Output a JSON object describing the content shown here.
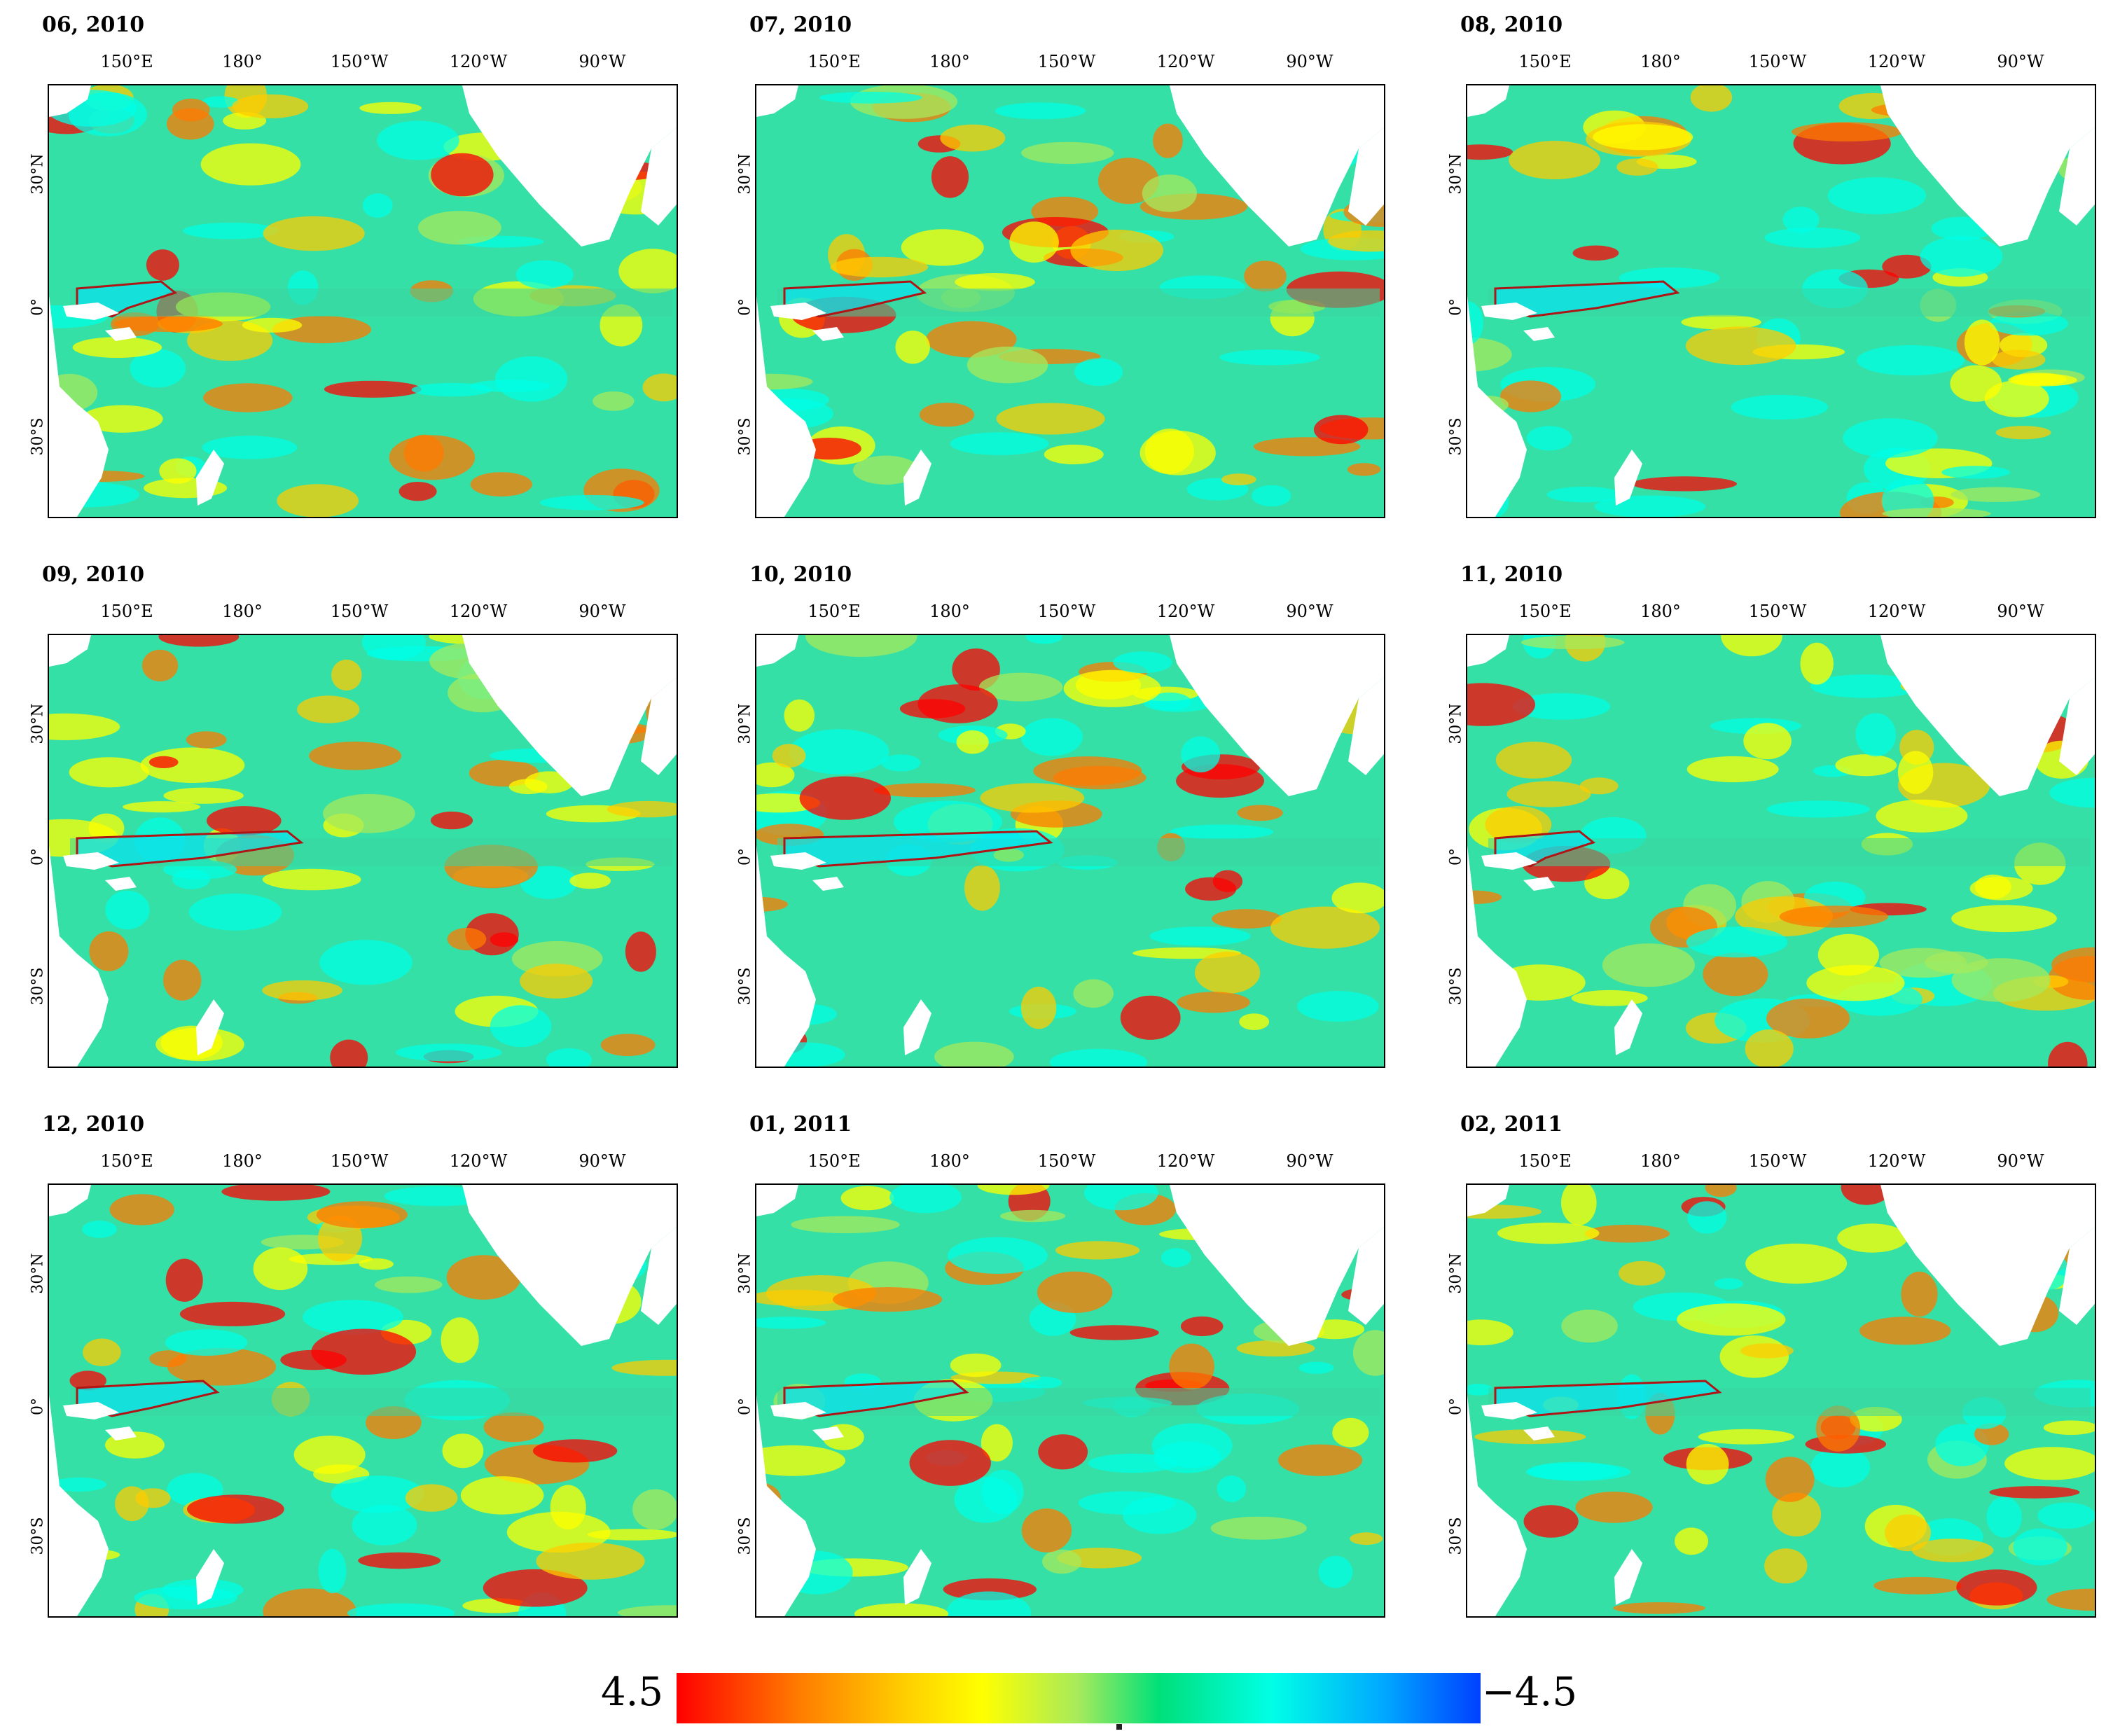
{
  "panels": [
    {
      "title": "06, 2010"
    },
    {
      "title": "07, 2010"
    },
    {
      "title": "08, 2010"
    },
    {
      "title": "09, 2010"
    },
    {
      "title": "10, 2010"
    },
    {
      "title": "11, 2010"
    },
    {
      "title": "12, 2010"
    },
    {
      "title": "01, 2011"
    },
    {
      "title": "02, 2011"
    }
  ],
  "longitude_labels": [
    "150°E",
    "180°",
    "150°W",
    "120°W",
    "90°W"
  ],
  "latitude_labels": [
    "30°N",
    "0°",
    "30°S"
  ],
  "colorbar": {
    "left_label": "4.5",
    "right_label": "−4.5",
    "colors": [
      "#ff0000",
      "#ff7a00",
      "#ffcc00",
      "#ffff00",
      "#a6ea5c",
      "#00e07a",
      "#00ffe6",
      "#00a8ff",
      "#0040ff"
    ]
  },
  "outline_color": "#b01515"
}
